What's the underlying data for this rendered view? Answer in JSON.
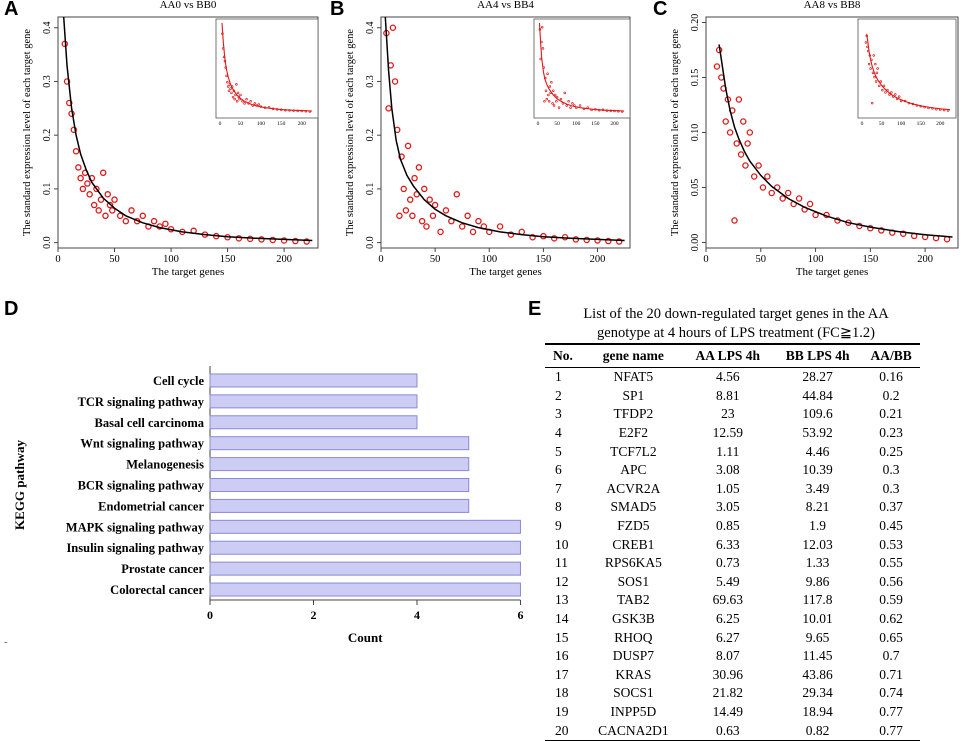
{
  "panels": {
    "a": "A",
    "b": "B",
    "c": "C",
    "d": "D",
    "e": "E"
  },
  "chart_data": [
    {
      "type": "scatter",
      "id": "A",
      "title": "AA0 vs BB0",
      "xlabel": "The target genes",
      "ylabel": "The standard expression level of each target gene",
      "xlim": [
        0,
        230
      ],
      "ylim": [
        -0.01,
        0.42
      ],
      "xticks": [
        0,
        50,
        100,
        150,
        200
      ],
      "yticks": [
        0.0,
        0.1,
        0.2,
        0.3,
        0.4
      ],
      "series": [
        {
          "name": "fitted",
          "style": "line",
          "x": [
            5,
            8,
            12,
            16,
            20,
            25,
            30,
            40,
            50,
            60,
            75,
            90,
            110,
            130,
            150,
            175,
            200,
            225
          ],
          "y": [
            0.42,
            0.33,
            0.25,
            0.2,
            0.165,
            0.135,
            0.112,
            0.083,
            0.064,
            0.05,
            0.037,
            0.028,
            0.02,
            0.015,
            0.011,
            0.008,
            0.006,
            0.004
          ]
        },
        {
          "name": "observed",
          "style": "points",
          "x": [
            6,
            8,
            10,
            12,
            14,
            16,
            18,
            20,
            22,
            24,
            26,
            28,
            30,
            32,
            34,
            36,
            38,
            40,
            42,
            44,
            46,
            48,
            50,
            55,
            60,
            65,
            70,
            75,
            80,
            85,
            90,
            95,
            100,
            110,
            120,
            130,
            140,
            150,
            160,
            170,
            180,
            190,
            200,
            210,
            220
          ],
          "y": [
            0.37,
            0.3,
            0.26,
            0.24,
            0.21,
            0.17,
            0.14,
            0.12,
            0.1,
            0.13,
            0.11,
            0.09,
            0.12,
            0.07,
            0.1,
            0.06,
            0.08,
            0.13,
            0.05,
            0.09,
            0.07,
            0.06,
            0.08,
            0.05,
            0.04,
            0.06,
            0.04,
            0.05,
            0.03,
            0.04,
            0.03,
            0.035,
            0.025,
            0.02,
            0.022,
            0.015,
            0.012,
            0.01,
            0.008,
            0.007,
            0.006,
            0.005,
            0.004,
            0.003,
            0.002
          ]
        }
      ],
      "inset": {
        "xticks": [
          0,
          50,
          100,
          150,
          200
        ],
        "xlim": [
          0,
          230
        ]
      }
    },
    {
      "type": "scatter",
      "id": "B",
      "title": "AA4 vs BB4",
      "xlabel": "The target genes",
      "ylabel": "The standard expression level of each target gene",
      "xlim": [
        0,
        230
      ],
      "ylim": [
        -0.01,
        0.42
      ],
      "xticks": [
        0,
        50,
        100,
        150,
        200
      ],
      "yticks": [
        0.0,
        0.1,
        0.2,
        0.3,
        0.4
      ],
      "series": [
        {
          "name": "fitted",
          "style": "line",
          "x": [
            4,
            7,
            10,
            14,
            18,
            24,
            30,
            40,
            50,
            60,
            75,
            90,
            110,
            130,
            150,
            175,
            200,
            225
          ],
          "y": [
            0.42,
            0.32,
            0.25,
            0.19,
            0.155,
            0.125,
            0.105,
            0.08,
            0.062,
            0.05,
            0.037,
            0.028,
            0.02,
            0.015,
            0.011,
            0.008,
            0.006,
            0.004
          ]
        },
        {
          "name": "observed",
          "style": "points",
          "x": [
            5,
            7,
            9,
            11,
            13,
            15,
            17,
            19,
            21,
            23,
            25,
            27,
            29,
            31,
            33,
            35,
            38,
            40,
            42,
            45,
            48,
            50,
            55,
            60,
            65,
            70,
            75,
            80,
            85,
            90,
            95,
            100,
            110,
            120,
            130,
            140,
            150,
            160,
            170,
            180,
            190,
            200,
            210,
            220
          ],
          "y": [
            0.39,
            0.25,
            0.33,
            0.4,
            0.3,
            0.21,
            0.05,
            0.16,
            0.1,
            0.06,
            0.18,
            0.08,
            0.05,
            0.12,
            0.09,
            0.14,
            0.04,
            0.1,
            0.03,
            0.08,
            0.05,
            0.07,
            0.02,
            0.06,
            0.04,
            0.09,
            0.03,
            0.05,
            0.02,
            0.04,
            0.03,
            0.02,
            0.03,
            0.015,
            0.02,
            0.01,
            0.012,
            0.008,
            0.01,
            0.006,
            0.005,
            0.004,
            0.003,
            0.002
          ]
        }
      ],
      "inset": {
        "xticks": [
          0,
          50,
          100,
          150,
          200
        ],
        "xlim": [
          0,
          230
        ]
      }
    },
    {
      "type": "scatter",
      "id": "C",
      "title": "AA8 vs BB8",
      "xlabel": "The target genes",
      "ylabel": "The standard expression level of each target gene",
      "xlim": [
        0,
        230
      ],
      "ylim": [
        -0.005,
        0.205
      ],
      "xticks": [
        0,
        50,
        100,
        150,
        200
      ],
      "yticks": [
        0.0,
        0.05,
        0.1,
        0.15,
        0.2
      ],
      "series": [
        {
          "name": "fitted",
          "style": "line",
          "x": [
            12,
            15,
            18,
            22,
            26,
            30,
            35,
            40,
            50,
            60,
            75,
            90,
            110,
            130,
            150,
            175,
            200,
            225
          ],
          "y": [
            0.18,
            0.16,
            0.14,
            0.12,
            0.105,
            0.094,
            0.083,
            0.074,
            0.061,
            0.051,
            0.04,
            0.032,
            0.024,
            0.018,
            0.014,
            0.01,
            0.007,
            0.005
          ]
        },
        {
          "name": "observed",
          "style": "points",
          "x": [
            10,
            12,
            14,
            16,
            18,
            20,
            22,
            24,
            26,
            28,
            30,
            32,
            34,
            36,
            38,
            40,
            44,
            48,
            52,
            56,
            60,
            65,
            70,
            75,
            80,
            85,
            90,
            95,
            100,
            110,
            120,
            130,
            140,
            150,
            160,
            170,
            180,
            190,
            200,
            210,
            220
          ],
          "y": [
            0.16,
            0.175,
            0.15,
            0.14,
            0.11,
            0.13,
            0.1,
            0.12,
            0.02,
            0.09,
            0.13,
            0.08,
            0.11,
            0.07,
            0.09,
            0.1,
            0.06,
            0.07,
            0.05,
            0.06,
            0.045,
            0.05,
            0.04,
            0.045,
            0.035,
            0.04,
            0.03,
            0.035,
            0.025,
            0.025,
            0.02,
            0.018,
            0.015,
            0.013,
            0.011,
            0.009,
            0.008,
            0.006,
            0.005,
            0.004,
            0.003
          ]
        }
      ],
      "inset": {
        "xticks": [
          0,
          50,
          100,
          150,
          200
        ],
        "xlim": [
          0,
          230
        ]
      }
    },
    {
      "type": "bar",
      "id": "D",
      "orientation": "horizontal",
      "title": "",
      "xlabel": "Count",
      "ylabel": "KEGG pathway",
      "xlim": [
        0,
        6.3
      ],
      "xticks": [
        0,
        2,
        4,
        6
      ],
      "categories": [
        "Cell cycle",
        "TCR signaling pathway",
        "Basal cell carcinoma",
        "Wnt signaling pathway",
        "Melanogenesis",
        "BCR signaling pathway",
        "Endometrial cancer",
        "MAPK signaling pathway",
        "Insulin signaling pathway",
        "Prostate cancer",
        "Colorectal cancer"
      ],
      "values": [
        4,
        4,
        4,
        5,
        5,
        5,
        5,
        6,
        6,
        6,
        6
      ]
    },
    {
      "type": "table",
      "id": "E",
      "title": "List of the 20 down-regulated target genes in the AA genotype at 4 hours of LPS treatment (FC≧1.2)",
      "columns": [
        "No.",
        "gene name",
        "AA LPS 4h",
        "BB LPS 4h",
        "AA/BB"
      ],
      "rows": [
        [
          "1",
          "NFAT5",
          "4.56",
          "28.27",
          "0.16"
        ],
        [
          "2",
          "SP1",
          "8.81",
          "44.84",
          "0.2"
        ],
        [
          "3",
          "TFDP2",
          "23",
          "109.6",
          "0.21"
        ],
        [
          "4",
          "E2F2",
          "12.59",
          "53.92",
          "0.23"
        ],
        [
          "5",
          "TCF7L2",
          "1.11",
          "4.46",
          "0.25"
        ],
        [
          "6",
          "APC",
          "3.08",
          "10.39",
          "0.3"
        ],
        [
          "7",
          "ACVR2A",
          "1.05",
          "3.49",
          "0.3"
        ],
        [
          "8",
          "SMAD5",
          "3.05",
          "8.21",
          "0.37"
        ],
        [
          "9",
          "FZD5",
          "0.85",
          "1.9",
          "0.45"
        ],
        [
          "10",
          "CREB1",
          "6.33",
          "12.03",
          "0.53"
        ],
        [
          "11",
          "RPS6KA5",
          "0.73",
          "1.33",
          "0.55"
        ],
        [
          "12",
          "SOS1",
          "5.49",
          "9.86",
          "0.56"
        ],
        [
          "13",
          "TAB2",
          "69.63",
          "117.8",
          "0.59"
        ],
        [
          "14",
          "GSK3B",
          "6.25",
          "10.01",
          "0.62"
        ],
        [
          "15",
          "RHOQ",
          "6.27",
          "9.65",
          "0.65"
        ],
        [
          "16",
          "DUSP7",
          "8.07",
          "11.45",
          "0.7"
        ],
        [
          "17",
          "KRAS",
          "30.96",
          "43.86",
          "0.71"
        ],
        [
          "18",
          "SOCS1",
          "21.82",
          "29.34",
          "0.74"
        ],
        [
          "19",
          "INPP5D",
          "14.49",
          "18.94",
          "0.77"
        ],
        [
          "20",
          "CACNA2D1",
          "0.63",
          "0.82",
          "0.77"
        ]
      ]
    }
  ],
  "colors": {
    "points": "#e01818",
    "curve": "#000000",
    "bar_fill": "#ccccf4",
    "bar_stroke": "#8a8ad8"
  }
}
